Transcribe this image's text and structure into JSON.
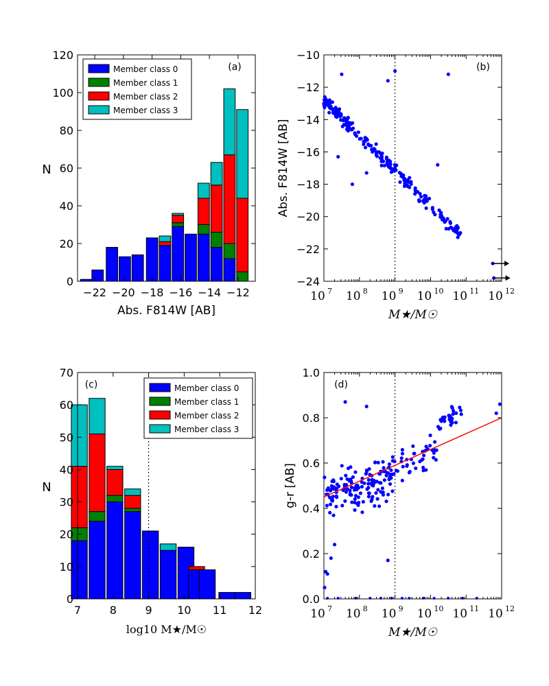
{
  "colors": {
    "class0": "#0000ff",
    "class1": "#008000",
    "class2": "#ff0000",
    "class3": "#00bfbf",
    "points": "#0000ff",
    "fit_line": "#ff0000"
  },
  "chart_data": [
    {
      "id": "a",
      "type": "bar",
      "stacked": true,
      "panel_label": "(a)",
      "xlabel": "Abs. F814W [AB]",
      "ylabel": "N",
      "xlim": [
        -23.2,
        -10.8
      ],
      "ylim": [
        0,
        120
      ],
      "xticks": [
        -22,
        -20,
        -18,
        -16,
        -14,
        -12
      ],
      "xtick_labels": [
        "−22",
        "−20",
        "−18",
        "−16",
        "−14",
        "−12"
      ],
      "yticks": [
        0,
        20,
        40,
        60,
        80,
        100,
        120
      ],
      "bin_width": 0.8,
      "bins": [
        -22.6,
        -21.8,
        -20.8,
        -19.9,
        -19.0,
        -18.0,
        -17.1,
        -16.2,
        -15.3,
        -14.4,
        -13.5,
        -12.6,
        -11.7
      ],
      "series": [
        {
          "name": "Member class 0",
          "values": [
            1,
            6,
            18,
            13,
            14,
            23,
            19,
            29,
            25,
            25,
            18,
            12,
            0
          ]
        },
        {
          "name": "Member class 1",
          "values": [
            0,
            0,
            0,
            0,
            0,
            0,
            0,
            2,
            0,
            5,
            8,
            8,
            5
          ]
        },
        {
          "name": "Member class 2",
          "values": [
            0,
            0,
            0,
            0,
            0,
            0,
            2,
            4,
            0,
            14,
            25,
            47,
            39
          ]
        },
        {
          "name": "Member class 3",
          "values": [
            0,
            0,
            0,
            0,
            0,
            0,
            3,
            1,
            0,
            8,
            12,
            35,
            47
          ]
        }
      ],
      "legend": [
        "Member class 0",
        "Member class 1",
        "Member class 2",
        "Member class 3"
      ],
      "legend_position": "top-left"
    },
    {
      "id": "b",
      "type": "scatter",
      "panel_label": "(b)",
      "xlabel": "M★/M☉",
      "ylabel": "Abs. F814W [AB]",
      "xscale": "log",
      "xlim": [
        7,
        12
      ],
      "ylim": [
        -24,
        -10
      ],
      "y_inverted": true,
      "xticks": [
        7,
        8,
        9,
        10,
        11,
        12
      ],
      "yticks": [
        -10,
        -12,
        -14,
        -16,
        -18,
        -20,
        -22,
        -24
      ],
      "ytick_labels": [
        "−10",
        "−12",
        "−14",
        "−16",
        "−18",
        "−20",
        "−22",
        "−24"
      ],
      "vline_log10": 9,
      "trend": {
        "log_mass_range": [
          7.0,
          10.9
        ],
        "mag_range": [
          -12.8,
          -21.3
        ],
        "scatter": 0.5,
        "n_points": 240
      },
      "outliers": [
        [
          7.5,
          -11.2
        ],
        [
          8.8,
          -11.6
        ],
        [
          9.0,
          -11.0
        ],
        [
          10.5,
          -11.2
        ],
        [
          10.2,
          -16.8
        ],
        [
          7.4,
          -16.3
        ],
        [
          7.8,
          -18.0
        ],
        [
          8.2,
          -17.3
        ]
      ],
      "upper_limit_arrows": [
        [
          11.75,
          -22.9
        ],
        [
          11.78,
          -23.8
        ]
      ]
    },
    {
      "id": "c",
      "type": "bar",
      "stacked": true,
      "panel_label": "(c)",
      "xlabel": "log10 M★/M☉",
      "ylabel": "N",
      "xlim": [
        7,
        12
      ],
      "ylim": [
        0,
        70
      ],
      "xticks": [
        7,
        8,
        9,
        10,
        11,
        12
      ],
      "yticks": [
        0,
        10,
        20,
        30,
        40,
        50,
        60,
        70
      ],
      "bin_width": 0.45,
      "bins": [
        7.05,
        7.55,
        8.05,
        8.55,
        9.05,
        9.55,
        10.05,
        10.35,
        10.65,
        11.2,
        11.65
      ],
      "series": [
        {
          "name": "Member class 0",
          "values": [
            18,
            24,
            30,
            27,
            21,
            15,
            16,
            9,
            9,
            2,
            2
          ]
        },
        {
          "name": "Member class 1",
          "values": [
            4,
            3,
            2,
            1,
            0,
            0,
            0,
            0,
            0,
            0,
            0
          ]
        },
        {
          "name": "Member class 2",
          "values": [
            19,
            24,
            8,
            4,
            0,
            0,
            0,
            1,
            0,
            0,
            0
          ]
        },
        {
          "name": "Member class 3",
          "values": [
            19,
            11,
            1,
            2,
            0,
            2,
            0,
            0,
            0,
            0,
            0
          ]
        }
      ],
      "legend": [
        "Member class 0",
        "Member class 1",
        "Member class 2",
        "Member class 3"
      ],
      "legend_position": "top-right",
      "vline": 9
    },
    {
      "id": "d",
      "type": "scatter",
      "panel_label": "(d)",
      "xlabel": "M★/M☉",
      "ylabel": "g-r [AB]",
      "xscale": "log",
      "xlim": [
        7,
        12
      ],
      "ylim": [
        0.0,
        1.0
      ],
      "xticks": [
        7,
        8,
        9,
        10,
        11,
        12
      ],
      "yticks": [
        0.0,
        0.2,
        0.4,
        0.6,
        0.8,
        1.0
      ],
      "ytick_labels": [
        "0.0",
        "0.2",
        "0.4",
        "0.6",
        "0.8",
        "1.0"
      ],
      "vline_log10": 9,
      "fit_line": {
        "x_log10": [
          7,
          12
        ],
        "y": [
          0.45,
          0.8
        ]
      },
      "groups": [
        {
          "log_mass_range": [
            7.0,
            9.0
          ],
          "y_center": 0.5,
          "y_spread": 0.1,
          "n_points": 150
        },
        {
          "log_mass_range": [
            9.0,
            10.2
          ],
          "y_center": 0.62,
          "y_spread": 0.07,
          "n_points": 40
        },
        {
          "log_mass_range": [
            10.2,
            10.9
          ],
          "y_center": 0.8,
          "y_spread": 0.04,
          "n_points": 30
        }
      ],
      "low_points": [
        [
          7.02,
          0.05
        ],
        [
          7.05,
          0.12
        ],
        [
          7.1,
          0.11
        ],
        [
          7.2,
          0.18
        ],
        [
          7.3,
          0.24
        ],
        [
          8.8,
          0.17
        ],
        [
          8.2,
          0.85
        ],
        [
          7.6,
          0.87
        ]
      ],
      "zero_row_log_mass": [
        7.1,
        7.4,
        7.9,
        8.3,
        8.6,
        8.9,
        9.2,
        9.4,
        9.8,
        10.1,
        10.5,
        10.9,
        11.3
      ],
      "high_points": [
        [
          11.85,
          0.82
        ],
        [
          11.95,
          0.86
        ]
      ]
    }
  ]
}
